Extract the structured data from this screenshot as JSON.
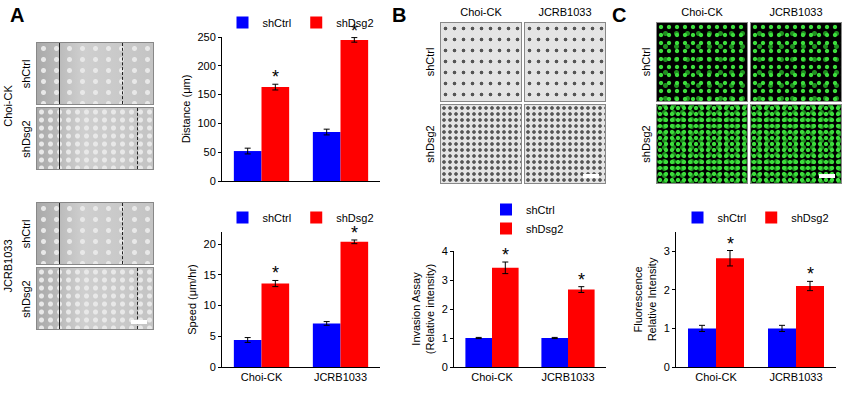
{
  "panels": [
    {
      "label": "A",
      "images": {
        "cell_lines": [
          "Choi-CK",
          "JCRB1033"
        ],
        "conditions": [
          "shCtrl",
          "shDsg2"
        ]
      }
    },
    {
      "label": "B",
      "images": {
        "cell_lines": [
          "Choi-CK",
          "JCRB1033"
        ],
        "conditions": [
          "shCtrl",
          "shDsg2"
        ]
      }
    },
    {
      "label": "C",
      "images": {
        "cell_lines": [
          "Choi-CK",
          "JCRB1033"
        ],
        "conditions": [
          "shCtrl",
          "shDsg2"
        ]
      }
    }
  ],
  "chart_data": [
    {
      "type": "bar",
      "y_label": [
        "Distance (μm)"
      ],
      "categories": [
        "Choi-CK",
        "JCRB1033"
      ],
      "series": [
        {
          "name": "shCtrl",
          "color": "#0000ff",
          "values": [
            52,
            85
          ],
          "errors": [
            5,
            5
          ]
        },
        {
          "name": "shDsg2",
          "color": "#ff0000",
          "values": [
            163,
            245
          ],
          "errors": [
            5,
            4
          ]
        }
      ],
      "ylim": [
        0,
        250
      ],
      "yticks": [
        0,
        50,
        100,
        150,
        200,
        250
      ],
      "grid": false,
      "legend": "top",
      "tick_labels": "y",
      "annotations": [
        {
          "category": "Choi-CK",
          "series": "shDsg2",
          "text": "*"
        },
        {
          "category": "JCRB1033",
          "series": "shDsg2",
          "text": "*"
        }
      ]
    },
    {
      "type": "bar",
      "y_label": [
        "Speed (μm/hr)"
      ],
      "categories": [
        "Choi-CK",
        "JCRB1033"
      ],
      "series": [
        {
          "name": "shCtrl",
          "color": "#0000ff",
          "values": [
            4.4,
            7.1
          ],
          "errors": [
            0.4,
            0.3
          ]
        },
        {
          "name": "shDsg2",
          "color": "#ff0000",
          "values": [
            13.6,
            20.4
          ],
          "errors": [
            0.5,
            0.3
          ]
        }
      ],
      "ylim": [
        0,
        22
      ],
      "yticks": [
        0,
        5,
        10,
        15,
        20
      ],
      "grid": false,
      "legend": "top",
      "annotations": [
        {
          "category": "Choi-CK",
          "series": "shDsg2",
          "text": "*"
        },
        {
          "category": "JCRB1033",
          "series": "shDsg2",
          "text": "*"
        }
      ]
    },
    {
      "type": "bar",
      "y_label": [
        "Invasion Assay",
        "(Relative intensity)"
      ],
      "categories": [
        "Choi-CK",
        "JCRB1033"
      ],
      "series": [
        {
          "name": "shCtrl",
          "color": "#0000ff",
          "values": [
            1,
            1
          ],
          "errors": [
            0.02,
            0.02
          ]
        },
        {
          "name": "shDsg2",
          "color": "#ff0000",
          "values": [
            3.42,
            2.67
          ],
          "errors": [
            0.2,
            0.1
          ]
        }
      ],
      "ylim": [
        0,
        4
      ],
      "yticks": [
        0,
        1,
        2,
        3,
        4
      ],
      "grid": false,
      "legend": "top",
      "annotations": [
        {
          "category": "Choi-CK",
          "series": "shDsg2",
          "text": "*"
        },
        {
          "category": "JCRB1033",
          "series": "shDsg2",
          "text": "*"
        }
      ]
    },
    {
      "type": "bar",
      "y_label": [
        "Fluorescence",
        "Relative Intensity"
      ],
      "categories": [
        "Choi-CK",
        "JCRB1033"
      ],
      "series": [
        {
          "name": "shCtrl",
          "color": "#0000ff",
          "values": [
            1,
            1
          ],
          "errors": [
            0.08,
            0.08
          ]
        },
        {
          "name": "shDsg2",
          "color": "#ff0000",
          "values": [
            2.82,
            2.1
          ],
          "errors": [
            0.2,
            0.12
          ]
        }
      ],
      "ylim": [
        0,
        3.5
      ],
      "yticks": [
        0,
        1,
        2,
        3
      ],
      "grid": false,
      "legend": "top",
      "annotations": [
        {
          "category": "Choi-CK",
          "series": "shDsg2",
          "text": "*"
        },
        {
          "category": "JCRB1033",
          "series": "shDsg2",
          "text": "*"
        }
      ]
    }
  ]
}
